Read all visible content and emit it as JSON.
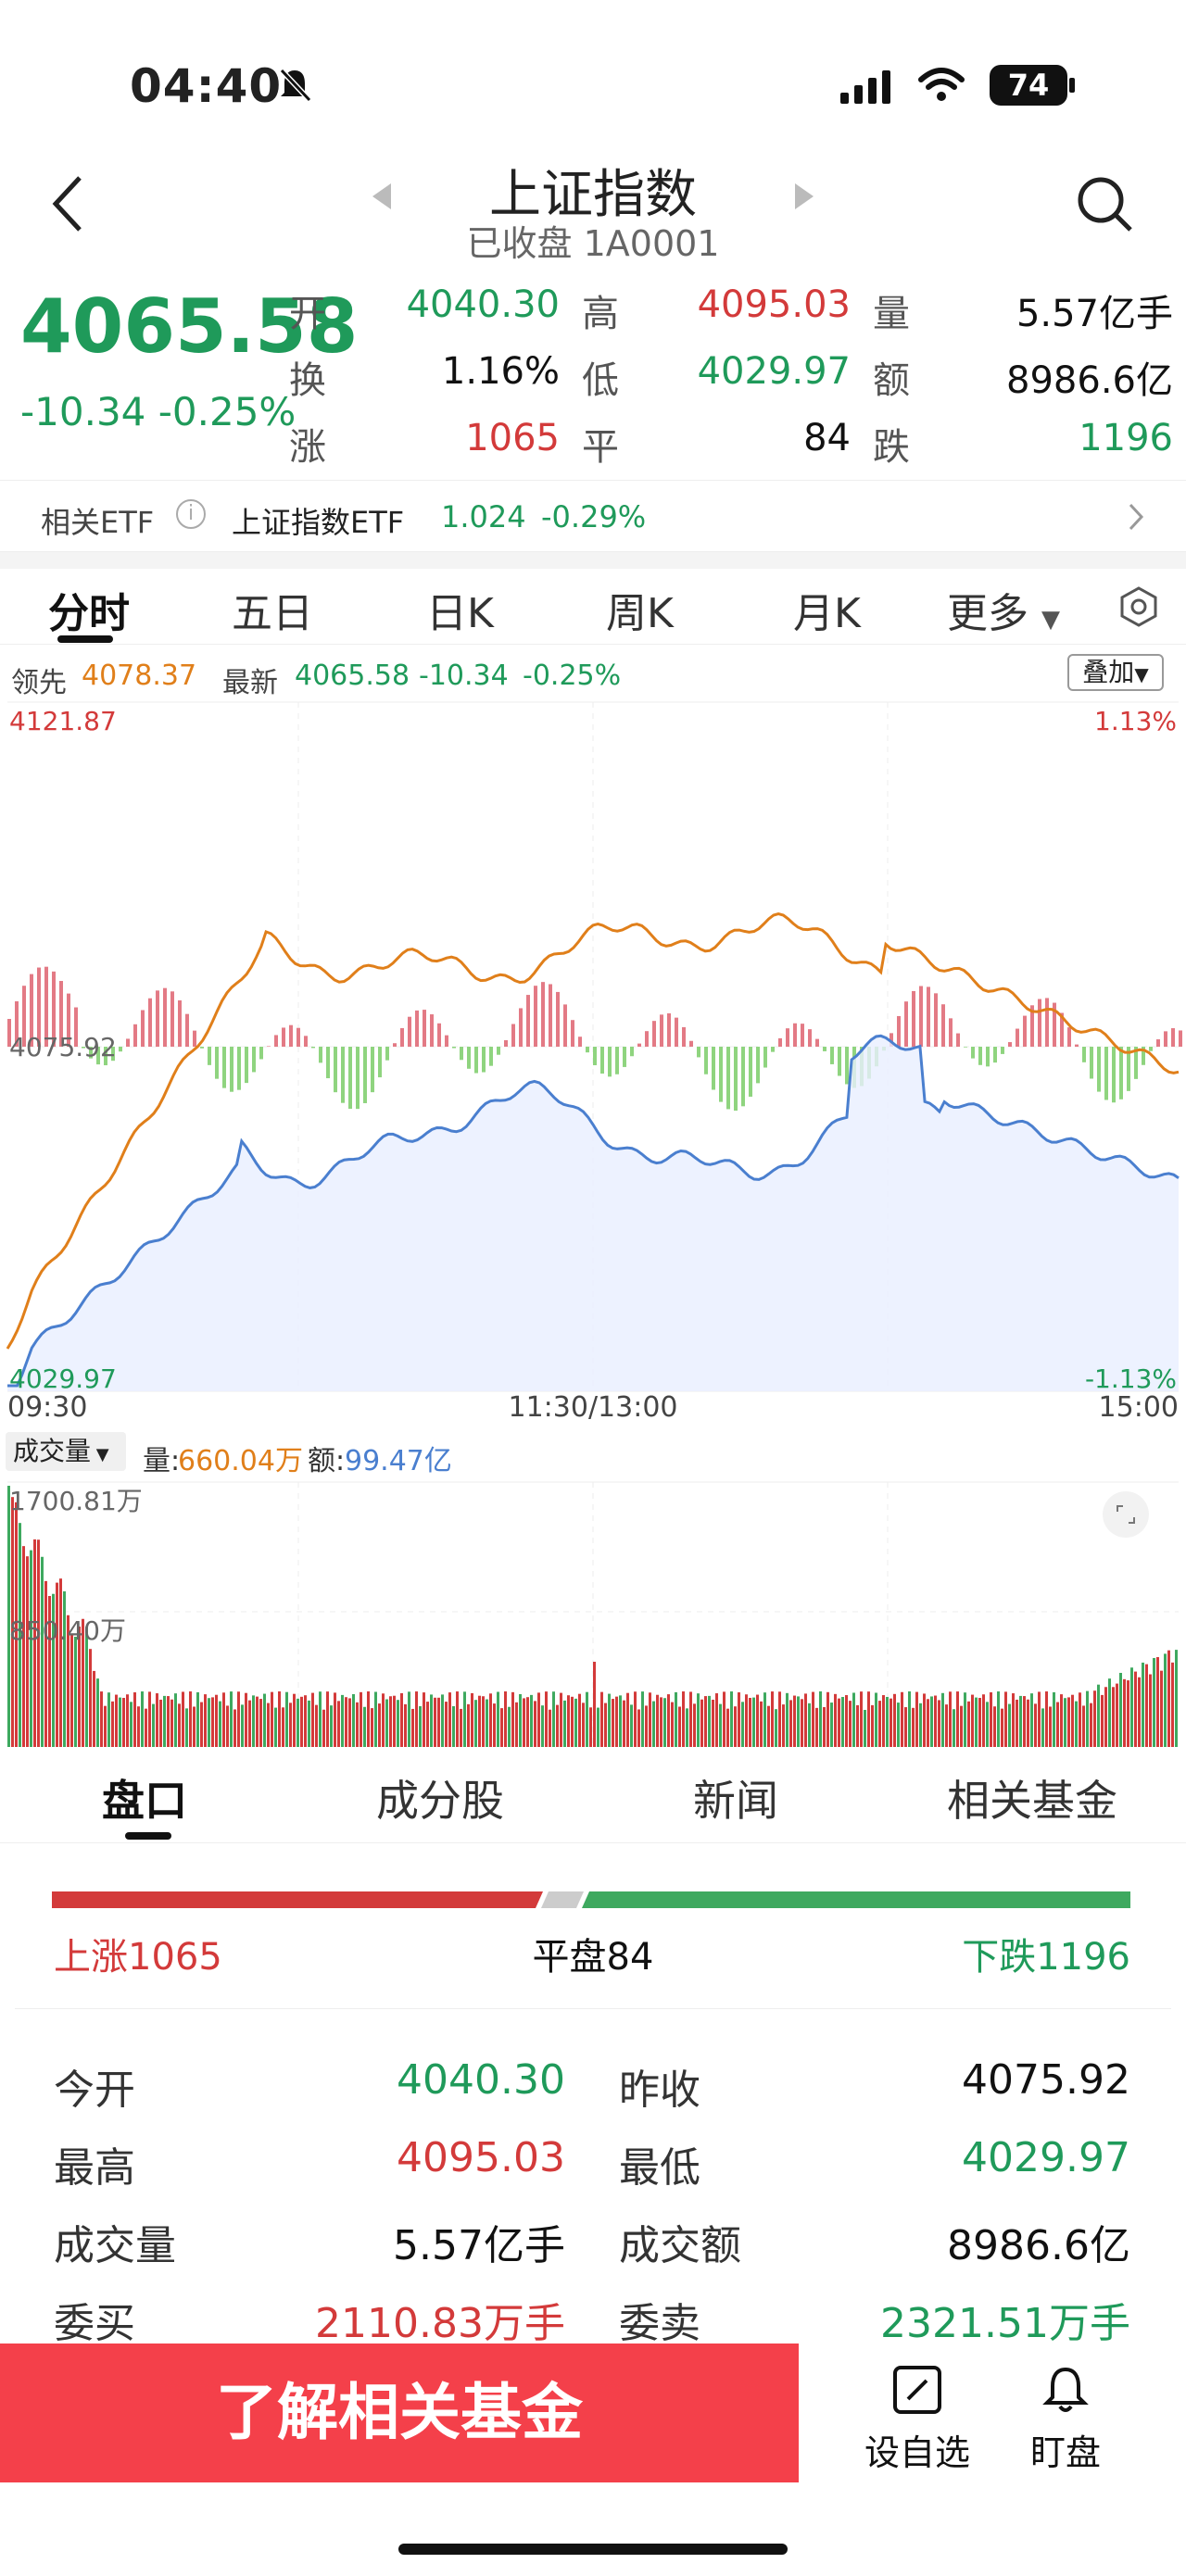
{
  "status": {
    "time": "04:40",
    "battery": "74"
  },
  "header": {
    "title": "上证指数",
    "subtitle": "已收盘 1A0001"
  },
  "quote": {
    "price": "4065.58",
    "change": "-10.34",
    "change_pct": "-0.25%",
    "open_label": "开",
    "open": "4040.30",
    "high_label": "高",
    "high": "4095.03",
    "vol_label": "量",
    "vol": "5.57亿手",
    "turnover_label": "换",
    "turnover": "1.16%",
    "low_label": "低",
    "low": "4029.97",
    "amount_label": "额",
    "amount": "8986.6亿",
    "rise_label": "涨",
    "rise": "1065",
    "flat_label": "平",
    "flat": "84",
    "fall_label": "跌",
    "fall": "1196"
  },
  "etf": {
    "label": "相关ETF",
    "name": "上证指数ETF",
    "price": "1.024",
    "pct": "-0.29%"
  },
  "tabs": [
    "分时",
    "五日",
    "日K",
    "周K",
    "月K",
    "更多"
  ],
  "chart_info": {
    "lead_label": "领先",
    "lead_val": "4078.37",
    "latest_label": "最新",
    "latest_val": "4065.58",
    "latest_chg": "-10.34",
    "latest_pct": "-0.25%",
    "overlay": "叠加"
  },
  "chart_data": {
    "type": "line",
    "ylim": [
      4029.97,
      4121.87
    ],
    "y_ticks": [
      "4121.87",
      "4075.92",
      "4029.97"
    ],
    "right_ticks": [
      "1.13%",
      "-1.13%"
    ],
    "x_ticks": [
      "09:30",
      "11:30/13:00",
      "15:00"
    ],
    "series": [
      {
        "name": "领先",
        "color": "#e07f1a"
      },
      {
        "name": "最新",
        "color": "#4a7fcf"
      }
    ]
  },
  "volume": {
    "selector": "成交量",
    "vol_label": "量:",
    "vol_val": "660.04万",
    "amt_label": "额:",
    "amt_val": "99.47亿",
    "top_tick": "1700.81万",
    "mid_tick": "850.40万"
  },
  "section_tabs": [
    "盘口",
    "成分股",
    "新闻",
    "相关基金"
  ],
  "breadth": {
    "up": "上涨1065",
    "flat": "平盘84",
    "down": "下跌1196"
  },
  "details": [
    {
      "l1": "今开",
      "v1": "4040.30",
      "c1": "green",
      "l2": "昨收",
      "v2": "4075.92",
      "c2": "black"
    },
    {
      "l1": "最高",
      "v1": "4095.03",
      "c1": "red",
      "l2": "最低",
      "v2": "4029.97",
      "c2": "green"
    },
    {
      "l1": "成交量",
      "v1": "5.57亿手",
      "c1": "black",
      "l2": "成交额",
      "v2": "8986.6亿",
      "c2": "black"
    },
    {
      "l1": "委买",
      "v1": "2110.83万手",
      "c1": "red",
      "l2": "委卖",
      "v2": "2321.51万手",
      "c2": "green"
    }
  ],
  "bottom": {
    "cta": "了解相关基金",
    "watch": "设自选",
    "monitor": "盯盘"
  }
}
